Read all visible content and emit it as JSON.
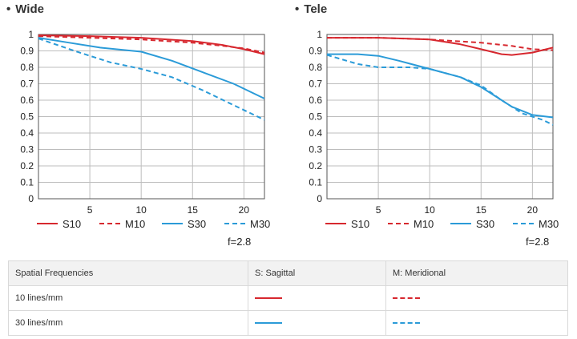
{
  "chart_data": [
    {
      "type": "line",
      "title": "Wide",
      "xlim": [
        0,
        22
      ],
      "ylim": [
        0,
        1
      ],
      "xticks": [
        5,
        10,
        15,
        20
      ],
      "yticks": [
        0,
        0.1,
        0.2,
        0.3,
        0.4,
        0.5,
        0.6,
        0.7,
        0.8,
        0.9,
        1
      ],
      "ytick_labels": [
        "0",
        "0.1",
        "0.2",
        "0.3",
        "0.4",
        "0.5",
        "0.6",
        "0.7",
        "0.8",
        "0.9",
        "1"
      ],
      "grid": true,
      "legend_position": "bottom",
      "note": "f=2.8",
      "series": [
        {
          "name": "S10",
          "color": "#d7282f",
          "style": "solid",
          "points": [
            [
              0,
              0.995
            ],
            [
              5,
              0.99
            ],
            [
              10,
              0.98
            ],
            [
              15,
              0.96
            ],
            [
              18,
              0.935
            ],
            [
              20,
              0.91
            ],
            [
              22,
              0.88
            ]
          ]
        },
        {
          "name": "M10",
          "color": "#d7282f",
          "style": "dashed",
          "points": [
            [
              0,
              0.99
            ],
            [
              5,
              0.98
            ],
            [
              10,
              0.97
            ],
            [
              15,
              0.95
            ],
            [
              18,
              0.93
            ],
            [
              20,
              0.915
            ],
            [
              22,
              0.89
            ]
          ]
        },
        {
          "name": "S30",
          "color": "#2b9bd8",
          "style": "solid",
          "points": [
            [
              0,
              0.98
            ],
            [
              3,
              0.95
            ],
            [
              6,
              0.92
            ],
            [
              10,
              0.895
            ],
            [
              13,
              0.84
            ],
            [
              16,
              0.77
            ],
            [
              19,
              0.7
            ],
            [
              22,
              0.61
            ]
          ]
        },
        {
          "name": "M30",
          "color": "#2b9bd8",
          "style": "dashed",
          "points": [
            [
              0,
              0.975
            ],
            [
              4,
              0.89
            ],
            [
              7,
              0.83
            ],
            [
              10,
              0.79
            ],
            [
              13,
              0.74
            ],
            [
              16,
              0.66
            ],
            [
              19,
              0.57
            ],
            [
              22,
              0.48
            ]
          ]
        }
      ]
    },
    {
      "type": "line",
      "title": "Tele",
      "xlim": [
        0,
        22
      ],
      "ylim": [
        0,
        1
      ],
      "xticks": [
        5,
        10,
        15,
        20
      ],
      "yticks": [
        0,
        0.1,
        0.2,
        0.3,
        0.4,
        0.5,
        0.6,
        0.7,
        0.8,
        0.9,
        1
      ],
      "ytick_labels": [
        "0",
        "0.1",
        "0.2",
        "0.3",
        "0.4",
        "0.5",
        "0.6",
        "0.7",
        "0.8",
        "0.9",
        "1"
      ],
      "grid": true,
      "legend_position": "bottom",
      "note": "f=2.8",
      "series": [
        {
          "name": "S10",
          "color": "#d7282f",
          "style": "solid",
          "points": [
            [
              0,
              0.98
            ],
            [
              5,
              0.98
            ],
            [
              10,
              0.97
            ],
            [
              13,
              0.94
            ],
            [
              15,
              0.91
            ],
            [
              17,
              0.88
            ],
            [
              18,
              0.875
            ],
            [
              20,
              0.89
            ],
            [
              22,
              0.92
            ]
          ]
        },
        {
          "name": "M10",
          "color": "#d7282f",
          "style": "dashed",
          "points": [
            [
              0,
              0.98
            ],
            [
              5,
              0.98
            ],
            [
              10,
              0.97
            ],
            [
              15,
              0.95
            ],
            [
              18,
              0.93
            ],
            [
              20,
              0.91
            ],
            [
              22,
              0.905
            ]
          ]
        },
        {
          "name": "S30",
          "color": "#2b9bd8",
          "style": "solid",
          "points": [
            [
              0,
              0.88
            ],
            [
              3,
              0.88
            ],
            [
              5,
              0.87
            ],
            [
              7,
              0.84
            ],
            [
              10,
              0.79
            ],
            [
              13,
              0.74
            ],
            [
              15,
              0.68
            ],
            [
              16.5,
              0.62
            ],
            [
              18,
              0.56
            ],
            [
              20,
              0.51
            ],
            [
              22,
              0.495
            ]
          ]
        },
        {
          "name": "M30",
          "color": "#2b9bd8",
          "style": "dashed",
          "points": [
            [
              0,
              0.875
            ],
            [
              3,
              0.82
            ],
            [
              5,
              0.8
            ],
            [
              8,
              0.8
            ],
            [
              10,
              0.79
            ],
            [
              13,
              0.74
            ],
            [
              15,
              0.69
            ],
            [
              17,
              0.6
            ],
            [
              19,
              0.52
            ],
            [
              21,
              0.48
            ],
            [
              22,
              0.45
            ]
          ]
        }
      ]
    }
  ],
  "table": {
    "headers": [
      "Spatial Frequencies",
      "S: Sagittal",
      "M: Meridional"
    ],
    "rows": [
      {
        "label": "10 lines/mm",
        "color": "#d7282f"
      },
      {
        "label": "30 lines/mm",
        "color": "#2b9bd8"
      }
    ]
  }
}
